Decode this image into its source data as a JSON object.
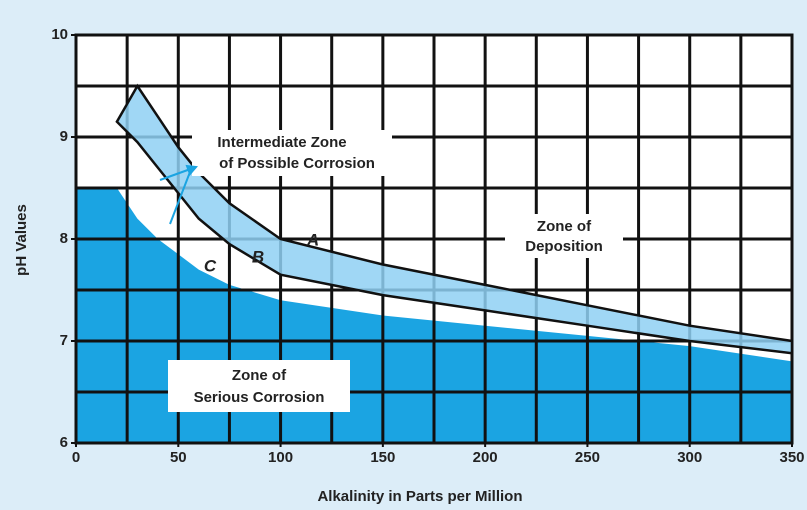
{
  "chart_data": {
    "type": "area",
    "xlabel": "Alkalinity in Parts per Million",
    "ylabel": "pH Values",
    "x": [
      0,
      20,
      30,
      40,
      50,
      60,
      75,
      100,
      150,
      200,
      250,
      300,
      350
    ],
    "series": [
      {
        "color": "#1ba4e2",
        "values": [
          8.5,
          8.5,
          8.2,
          8.0,
          7.85,
          7.7,
          7.55,
          7.4,
          7.25,
          7.15,
          7.05,
          6.95,
          6.8
        ]
      },
      {
        "color": "#8fd0f3",
        "values": [
          null,
          9.15,
          8.95,
          8.7,
          8.45,
          8.2,
          7.95,
          7.65,
          7.45,
          7.3,
          7.15,
          7.0,
          6.88
        ]
      },
      {
        "color": "#8fd0f3",
        "values": [
          null,
          null,
          9.5,
          9.2,
          8.9,
          8.65,
          8.35,
          8.0,
          7.75,
          7.55,
          7.35,
          7.15,
          7.0
        ]
      }
    ],
    "xlim": [
      0,
      350
    ],
    "ylim": [
      6,
      10
    ],
    "xticks": [
      0,
      50,
      100,
      150,
      200,
      250,
      300,
      350
    ],
    "yticks": [
      6,
      7,
      8,
      9,
      10
    ],
    "xgrid": [
      25,
      50,
      75,
      100,
      125,
      150,
      175,
      200,
      225,
      250,
      275,
      300,
      325
    ],
    "ygrid": [
      6.5,
      7,
      7.5,
      8,
      8.5,
      9,
      9.5
    ],
    "annotations": [
      "Intermediate Zone",
      "of Possible Corrosion",
      "Zone of",
      "Deposition",
      "Zone of",
      "Serious Corrosion",
      "A",
      "B",
      "C"
    ]
  }
}
